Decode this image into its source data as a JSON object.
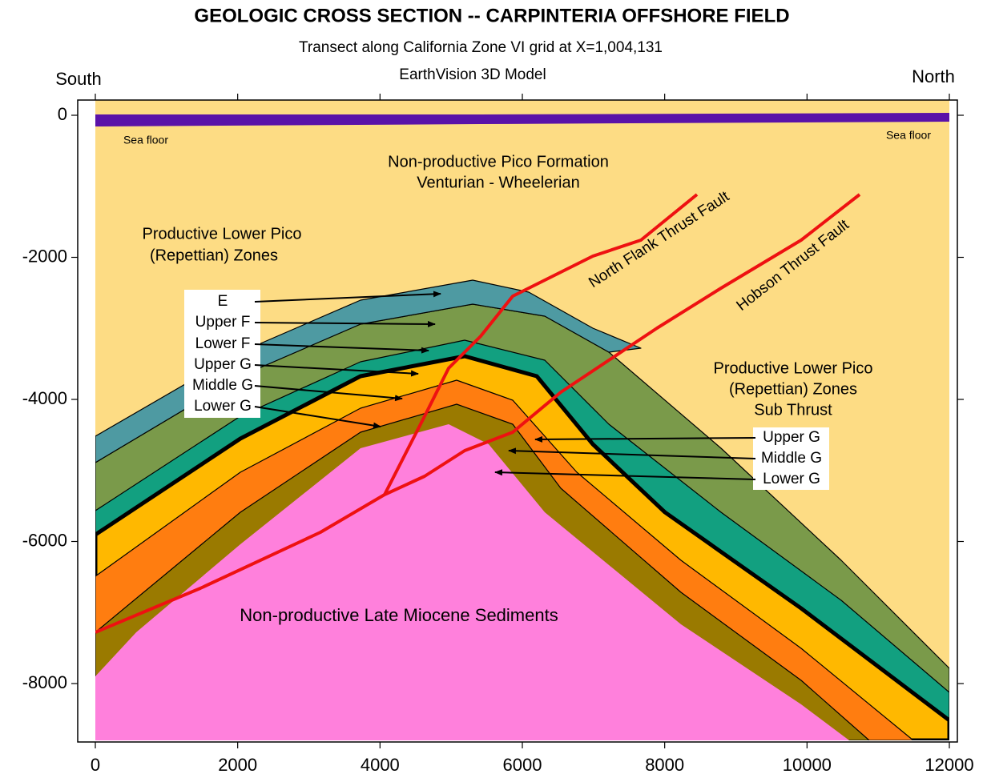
{
  "title": "GEOLOGIC CROSS SECTION -- CARPINTERIA OFFSHORE FIELD",
  "subtitle": "Transect along California Zone VI grid at X=1,004,131",
  "model": "EarthVision 3D Model",
  "south": "South",
  "north": "North",
  "axes": {
    "xticks": [
      0,
      2000,
      4000,
      6000,
      8000,
      10000,
      12000
    ],
    "yticks": [
      0,
      -2000,
      -4000,
      -6000,
      -8000
    ]
  },
  "labels": {
    "sea_floor_left": "Sea floor",
    "sea_floor_right": "Sea floor",
    "pico": [
      "Non-productive Pico Formation",
      "Venturian - Wheelerian"
    ],
    "lower_pico": [
      "Productive Lower Pico",
      "(Repettian) Zones"
    ],
    "sub_thrust": [
      "Productive Lower Pico",
      "(Repettian) Zones",
      "Sub Thrust"
    ],
    "miocene": "Non-productive Late Miocene Sediments",
    "north_flank_fault": "North Flank Thrust Fault",
    "hobson_fault": "Hobson Thrust Fault"
  },
  "zones_left": [
    "E",
    "Upper F",
    "Lower F",
    "Upper G",
    "Middle G",
    "Lower G"
  ],
  "zones_right": [
    "Upper G",
    "Middle G",
    "Lower G"
  ]
}
